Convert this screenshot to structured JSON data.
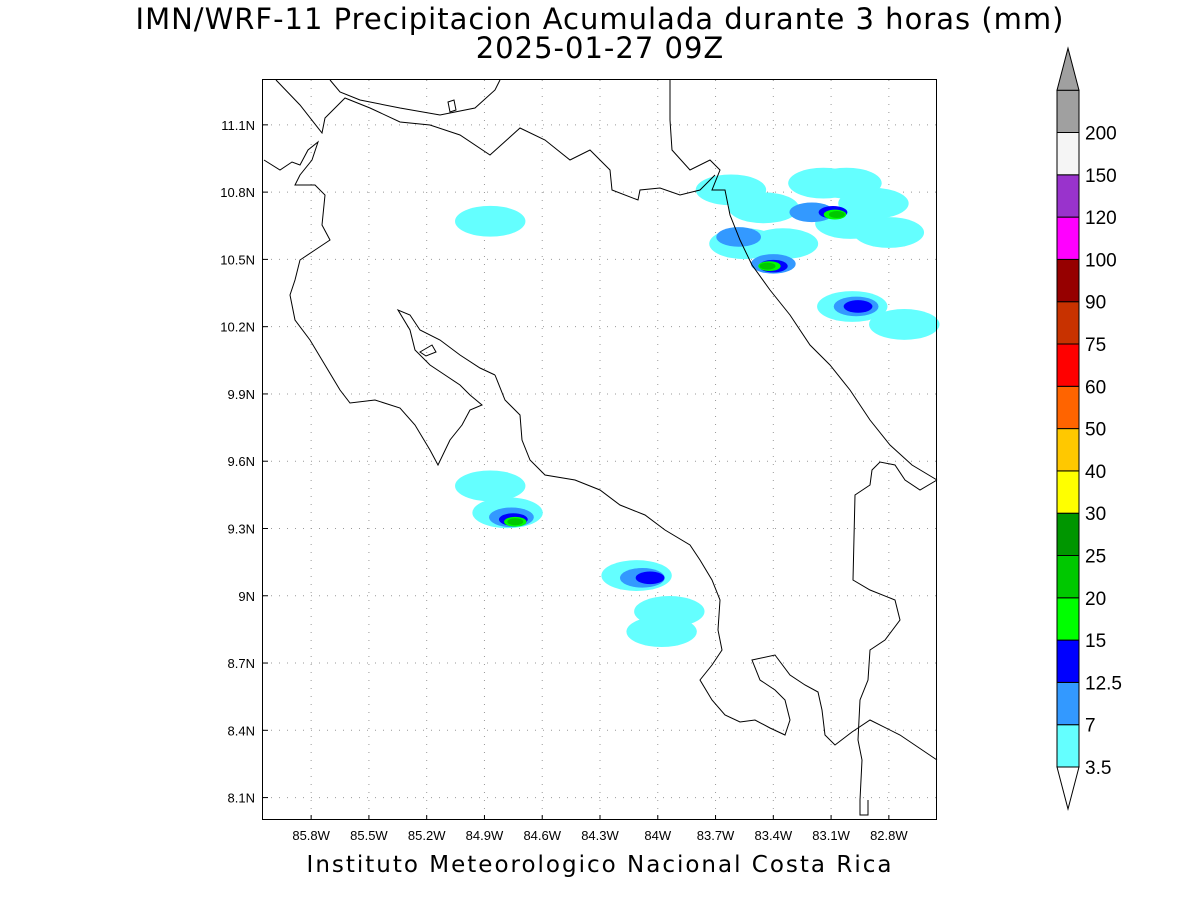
{
  "title": {
    "line1": "IMN/WRF-11 Precipitacion Acumulada durante 3 horas (mm)",
    "line2": "2025-01-27 09Z"
  },
  "footer": "Instituto Meteorologico Nacional Costa Rica",
  "map": {
    "lon_range": [
      -86.05,
      -82.55
    ],
    "lat_range": [
      8.0,
      11.3
    ],
    "lon_ticks": [
      {
        "v": -85.8,
        "label": "85.8W"
      },
      {
        "v": -85.5,
        "label": "85.5W"
      },
      {
        "v": -85.2,
        "label": "85.2W"
      },
      {
        "v": -84.9,
        "label": "84.9W"
      },
      {
        "v": -84.6,
        "label": "84.6W"
      },
      {
        "v": -84.3,
        "label": "84.3W"
      },
      {
        "v": -84.0,
        "label": "84W"
      },
      {
        "v": -83.7,
        "label": "83.7W"
      },
      {
        "v": -83.4,
        "label": "83.4W"
      },
      {
        "v": -83.1,
        "label": "83.1W"
      },
      {
        "v": -82.8,
        "label": "82.8W"
      }
    ],
    "lat_ticks": [
      {
        "v": 11.1,
        "label": "11.1N"
      },
      {
        "v": 10.8,
        "label": "10.8N"
      },
      {
        "v": 10.5,
        "label": "10.5N"
      },
      {
        "v": 10.2,
        "label": "10.2N"
      },
      {
        "v": 9.9,
        "label": "9.9N"
      },
      {
        "v": 9.6,
        "label": "9.6N"
      },
      {
        "v": 9.3,
        "label": "9.3N"
      },
      {
        "v": 9.0,
        "label": "9N"
      },
      {
        "v": 8.7,
        "label": "8.7N"
      },
      {
        "v": 8.4,
        "label": "8.4N"
      },
      {
        "v": 8.1,
        "label": "8.1N"
      }
    ],
    "grid": true,
    "precip_cells": [
      {
        "lon": -83.14,
        "lat": 10.84,
        "level": "3.5"
      },
      {
        "lon": -83.02,
        "lat": 10.84,
        "level": "3.5"
      },
      {
        "lon": -82.88,
        "lat": 10.75,
        "level": "3.5"
      },
      {
        "lon": -83.45,
        "lat": 10.73,
        "level": "3.5"
      },
      {
        "lon": -83.62,
        "lat": 10.81,
        "level": "3.5"
      },
      {
        "lon": -83.35,
        "lat": 10.57,
        "level": "3.5"
      },
      {
        "lon": -83.55,
        "lat": 10.57,
        "level": "3.5"
      },
      {
        "lon": -83.0,
        "lat": 10.66,
        "level": "3.5"
      },
      {
        "lon": -82.8,
        "lat": 10.62,
        "level": "3.5"
      },
      {
        "lon": -82.99,
        "lat": 10.29,
        "level": "3.5"
      },
      {
        "lon": -82.72,
        "lat": 10.21,
        "level": "3.5"
      },
      {
        "lon": -84.87,
        "lat": 10.67,
        "level": "3.5"
      },
      {
        "lon": -84.87,
        "lat": 9.49,
        "level": "3.5"
      },
      {
        "lon": -84.78,
        "lat": 9.37,
        "level": "3.5"
      },
      {
        "lon": -84.11,
        "lat": 9.09,
        "level": "3.5"
      },
      {
        "lon": -83.94,
        "lat": 8.93,
        "level": "3.5"
      },
      {
        "lon": -83.98,
        "lat": 8.84,
        "level": "3.5"
      },
      {
        "lon": -83.2,
        "lat": 10.71,
        "level": "7"
      },
      {
        "lon": -83.4,
        "lat": 10.48,
        "level": "7"
      },
      {
        "lon": -83.58,
        "lat": 10.6,
        "level": "7"
      },
      {
        "lon": -82.97,
        "lat": 10.29,
        "level": "7"
      },
      {
        "lon": -84.76,
        "lat": 9.35,
        "level": "7"
      },
      {
        "lon": -84.08,
        "lat": 9.08,
        "level": "7"
      },
      {
        "lon": -83.09,
        "lat": 10.71,
        "level": "12.5"
      },
      {
        "lon": -83.4,
        "lat": 10.47,
        "level": "12.5"
      },
      {
        "lon": -82.96,
        "lat": 10.29,
        "level": "12.5"
      },
      {
        "lon": -84.04,
        "lat": 9.08,
        "level": "12.5"
      },
      {
        "lon": -84.75,
        "lat": 9.34,
        "level": "12.5"
      },
      {
        "lon": -83.08,
        "lat": 10.7,
        "level": "15"
      },
      {
        "lon": -83.42,
        "lat": 10.47,
        "level": "15"
      },
      {
        "lon": -84.74,
        "lat": 9.33,
        "level": "15"
      },
      {
        "lon": -83.07,
        "lat": 10.7,
        "level": "20"
      },
      {
        "lon": -83.43,
        "lat": 10.47,
        "level": "20"
      },
      {
        "lon": -84.74,
        "lat": 9.33,
        "level": "20"
      }
    ]
  },
  "legend": {
    "top_arrow_color": "#a0a0a0",
    "bottom_arrow_color": "#ffffff",
    "boxes": [
      {
        "label": "3.5",
        "color": "#64ffff"
      },
      {
        "label": "7",
        "color": "#3399ff"
      },
      {
        "label": "12.5",
        "color": "#0000ff"
      },
      {
        "label": "15",
        "color": "#00ff00"
      },
      {
        "label": "20",
        "color": "#00c800"
      },
      {
        "label": "25",
        "color": "#009600"
      },
      {
        "label": "30",
        "color": "#ffff00"
      },
      {
        "label": "40",
        "color": "#ffc800"
      },
      {
        "label": "50",
        "color": "#ff6400"
      },
      {
        "label": "60",
        "color": "#ff0000"
      },
      {
        "label": "75",
        "color": "#c83200"
      },
      {
        "label": "90",
        "color": "#960000"
      },
      {
        "label": "100",
        "color": "#ff00ff"
      },
      {
        "label": "120",
        "color": "#9933cc"
      },
      {
        "label": "150",
        "color": "#f5f5f5"
      },
      {
        "label": "200",
        "color": "#a0a0a0"
      }
    ]
  }
}
